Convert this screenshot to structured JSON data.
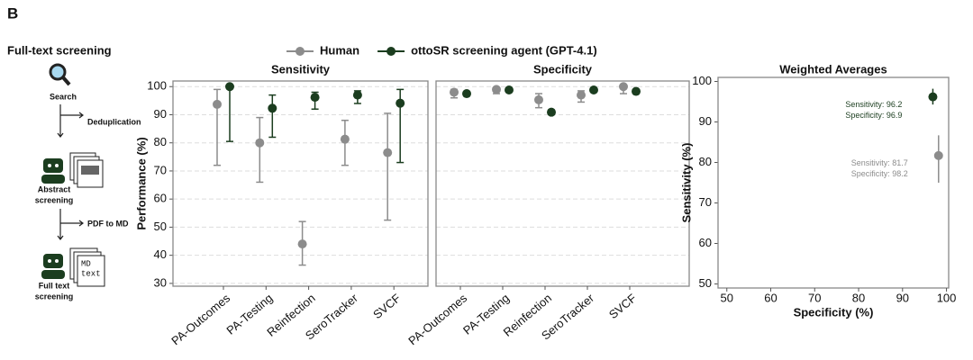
{
  "panel_label": "B",
  "workflow": {
    "title": "Full-text screening",
    "steps": [
      [
        "Search"
      ],
      [
        "Abstract",
        "screening"
      ],
      [
        "Full text",
        "screening"
      ]
    ],
    "transitions": [
      "Deduplication",
      "PDF to MD"
    ],
    "doc_text": [
      "MD",
      "text"
    ]
  },
  "chart_data": [
    {
      "type": "dotplot",
      "title": "Sensitivity",
      "ylabel": "Performance (%)",
      "categories": [
        "PA-Outcomes",
        "PA-Testing",
        "Reinfection",
        "SeroTracker",
        "SVCF"
      ],
      "ylim": [
        29,
        102
      ],
      "yticks": [
        30,
        40,
        50,
        60,
        70,
        80,
        90,
        100
      ],
      "grid": true,
      "series": [
        {
          "name": "Human",
          "color": "#8c8c8c",
          "values": [
            93.7,
            80,
            44,
            81.3,
            76.5
          ],
          "low": [
            72,
            66,
            36.5,
            72,
            52.5
          ],
          "high": [
            99,
            89,
            52,
            88,
            90.5
          ]
        },
        {
          "name": "ottoSR screening agent (GPT-4.1)",
          "color": "#1b3d1f",
          "values": [
            100,
            92.3,
            96.2,
            97,
            94.1
          ],
          "low": [
            80.5,
            82,
            92,
            94,
            73
          ],
          "high": [
            100,
            97,
            98,
            98.5,
            99
          ]
        }
      ]
    },
    {
      "type": "dotplot",
      "title": "Specificity",
      "categories": [
        "PA-Outcomes",
        "PA-Testing",
        "Reinfection",
        "SeroTracker",
        "SVCF"
      ],
      "ylim": [
        29,
        102
      ],
      "yticks": [
        30,
        40,
        50,
        60,
        70,
        80,
        90,
        100
      ],
      "grid": true,
      "series": [
        {
          "color": "#8c8c8c",
          "values": [
            98,
            99,
            95.3,
            97,
            100
          ],
          "low": [
            96,
            97.5,
            92.5,
            94.5,
            97.5
          ],
          "high": [
            99,
            99.7,
            97.5,
            98.5,
            100
          ]
        },
        {
          "color": "#1b3d1f",
          "values": [
            97.5,
            98.8,
            90.9,
            98.8,
            98.3
          ],
          "low": [
            97,
            98.3,
            90.5,
            98.3,
            97.8
          ],
          "high": [
            98,
            99.2,
            91.3,
            99.2,
            98.8
          ]
        }
      ]
    },
    {
      "type": "scatter",
      "title": "Weighted Averages",
      "xlabel": "Specificity (%)",
      "ylabel": "Sensitivity (%)",
      "xlim": [
        48,
        100.5
      ],
      "ylim": [
        49,
        101
      ],
      "xticks": [
        50,
        60,
        70,
        80,
        90,
        100
      ],
      "yticks": [
        50,
        60,
        70,
        80,
        90,
        100
      ],
      "series": [
        {
          "color": "#1b3d1f",
          "x": [
            96.9
          ],
          "values": [
            96.2
          ],
          "low": [
            94.3
          ],
          "high": [
            98.2
          ],
          "labels": [
            "Sensitivity: 96.2",
            "Specificity: 96.9"
          ]
        },
        {
          "color": "#8c8c8c",
          "x": [
            98.2
          ],
          "values": [
            81.7
          ],
          "low": [
            75
          ],
          "high": [
            86.7
          ],
          "labels": [
            "Sensitivity: 81.7",
            "Specificity: 98.2"
          ]
        }
      ]
    }
  ]
}
